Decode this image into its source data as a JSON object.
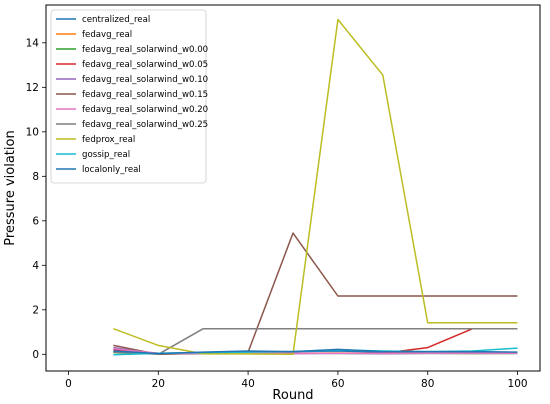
{
  "chart_data": {
    "type": "line",
    "title": "",
    "xlabel": "Round",
    "ylabel": "Pressure violation",
    "xlim": [
      -5,
      105
    ],
    "ylim": [
      -0.75,
      15.7
    ],
    "xticks": [
      0,
      20,
      40,
      60,
      80,
      100
    ],
    "yticks": [
      0,
      2,
      4,
      6,
      8,
      10,
      12,
      14
    ],
    "grid": false,
    "legend_position": "upper-left",
    "x": [
      10,
      20,
      30,
      40,
      50,
      60,
      70,
      80,
      90,
      100
    ],
    "series": [
      {
        "name": "centralized_real",
        "color": "#1f77b4",
        "values": [
          0.12,
          0.05,
          0.07,
          0.1,
          0.12,
          0.15,
          0.1,
          0.08,
          0.09,
          0.08
        ]
      },
      {
        "name": "fedavg_real",
        "color": "#ff7f0e",
        "values": [
          0.1,
          0.03,
          0.05,
          0.06,
          0.05,
          0.06,
          0.05,
          0.06,
          0.05,
          0.05
        ]
      },
      {
        "name": "fedavg_real_solarwind_w0.00",
        "color": "#2ca02c",
        "values": [
          0.08,
          0.02,
          0.03,
          0.04,
          0.05,
          0.04,
          0.03,
          0.04,
          0.03,
          0.04
        ]
      },
      {
        "name": "fedavg_real_solarwind_w0.05",
        "color": "#d62728",
        "values": [
          0.2,
          0.05,
          0.05,
          0.05,
          0.05,
          0.05,
          0.05,
          0.3,
          1.15,
          1.15
        ]
      },
      {
        "name": "fedavg_real_solarwind_w0.10",
        "color": "#9467bd",
        "values": [
          0.3,
          0.02,
          0.03,
          0.04,
          0.03,
          0.04,
          0.03,
          0.04,
          0.05,
          0.04
        ]
      },
      {
        "name": "fedavg_real_solarwind_w0.15",
        "color": "#8c564b",
        "values": [
          0.4,
          0.0,
          0.05,
          0.1,
          5.45,
          2.62,
          2.62,
          2.62,
          2.62,
          2.62
        ]
      },
      {
        "name": "fedavg_real_solarwind_w0.20",
        "color": "#e377c2",
        "values": [
          0.25,
          0.05,
          0.04,
          0.05,
          0.04,
          0.05,
          0.04,
          0.05,
          0.04,
          0.05
        ]
      },
      {
        "name": "fedavg_real_solarwind_w0.25",
        "color": "#7f7f7f",
        "values": [
          0.1,
          0.0,
          1.15,
          1.15,
          1.15,
          1.15,
          1.15,
          1.15,
          1.15,
          1.15
        ]
      },
      {
        "name": "fedprox_real",
        "color": "#bcbd22",
        "values": [
          1.15,
          0.4,
          0.02,
          0.02,
          0.0,
          15.05,
          12.55,
          1.42,
          1.42,
          1.42
        ]
      },
      {
        "name": "gossip_real",
        "color": "#17becf",
        "values": [
          -0.02,
          0.05,
          0.08,
          0.1,
          0.12,
          0.2,
          0.15,
          0.12,
          0.15,
          0.28
        ]
      },
      {
        "name": "localonly_real",
        "color": "#1f77b4",
        "values": [
          0.15,
          0.03,
          0.1,
          0.15,
          0.12,
          0.22,
          0.12,
          0.12,
          0.12,
          0.1
        ]
      }
    ]
  }
}
